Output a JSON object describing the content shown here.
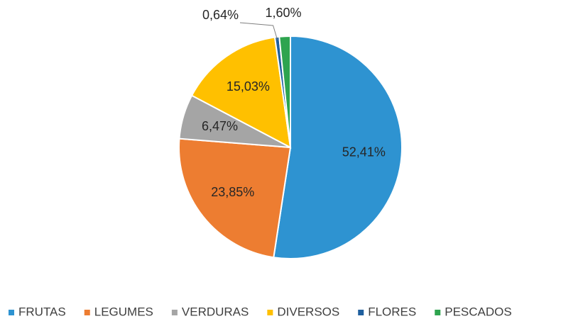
{
  "chart_data": {
    "type": "pie",
    "categories": [
      "FRUTAS",
      "LEGUMES",
      "VERDURAS",
      "DIVERSOS",
      "FLORES",
      "PESCADOS"
    ],
    "values": [
      52.41,
      23.85,
      6.47,
      15.03,
      0.64,
      1.6
    ],
    "value_labels": [
      "52,41%",
      "23,85%",
      "6,47%",
      "15,03%",
      "0,64%",
      "1,60%"
    ],
    "colors": [
      "#2e93d1",
      "#ed7d31",
      "#a5a5a5",
      "#ffc000",
      "#1f5f9e",
      "#2ea44f"
    ],
    "legend": "bottom"
  }
}
